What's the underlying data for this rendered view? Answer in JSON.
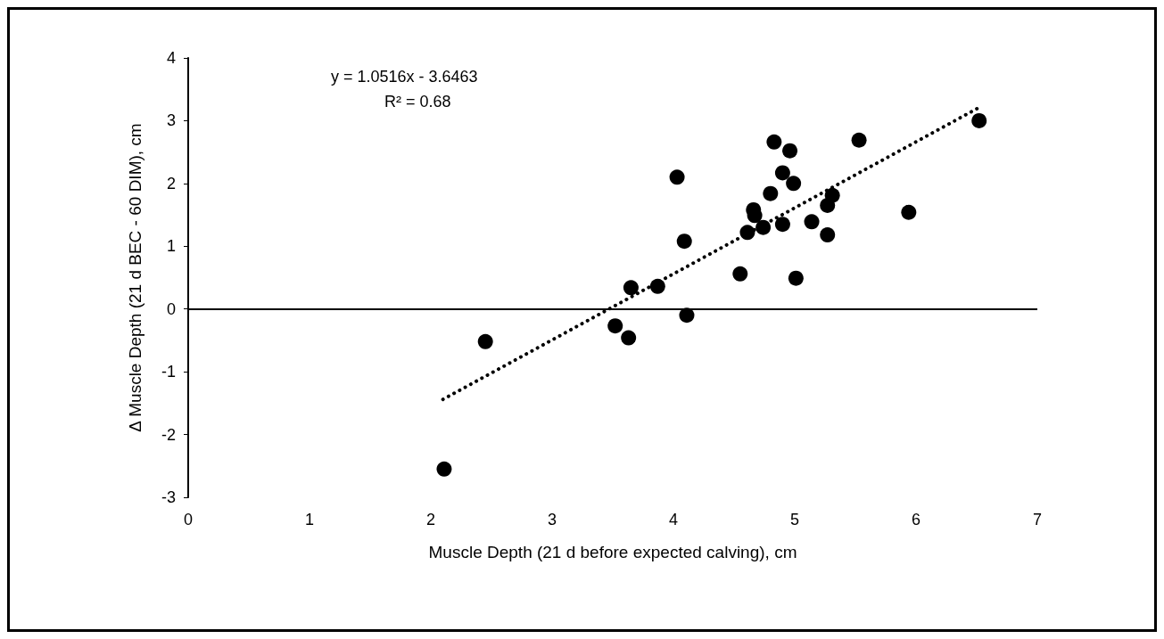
{
  "chart_data": {
    "type": "scatter",
    "xlabel": "Muscle Depth (21 d before expected calving), cm",
    "ylabel": "Δ Muscle Depth (21 d BEC - 60 DIM), cm",
    "xlim": [
      0,
      7
    ],
    "xticks": [
      0,
      1,
      2,
      3,
      4,
      5,
      6,
      7
    ],
    "ylim": [
      -3,
      4
    ],
    "yticks": [
      -3,
      -2,
      -1,
      0,
      1,
      2,
      3,
      4
    ],
    "grid": false,
    "marker": "circle",
    "annotations": [
      "y = 1.0516x - 3.6463",
      "R² = 0.68"
    ],
    "ref_lines": [
      {
        "axis": "y",
        "value": 0,
        "color": "#000000"
      }
    ],
    "series": [
      {
        "color": "#000000",
        "x": [
          2.11,
          2.45,
          3.52,
          3.63,
          3.65,
          3.87,
          4.03,
          4.09,
          4.11,
          4.55,
          4.61,
          4.66,
          4.67,
          4.74,
          4.8,
          4.83,
          4.9,
          4.9,
          4.96,
          4.99,
          5.01,
          5.27,
          5.31,
          5.14,
          5.27,
          5.53,
          5.94,
          6.52
        ],
        "values": [
          -2.55,
          -0.52,
          -0.27,
          -0.46,
          0.34,
          0.36,
          2.1,
          1.08,
          -0.1,
          0.56,
          1.22,
          1.58,
          1.49,
          1.3,
          1.84,
          2.66,
          2.17,
          1.35,
          2.52,
          2,
          0.49,
          1.65,
          1.81,
          1.39,
          1.18,
          2.69,
          1.54,
          3
        ]
      },
      {
        "type": "line",
        "color": "#000000",
        "line_style": "dotted",
        "marker": "none",
        "x": [
          2.1,
          6.52
        ],
        "values": [
          -1.44,
          3.21
        ]
      }
    ]
  }
}
